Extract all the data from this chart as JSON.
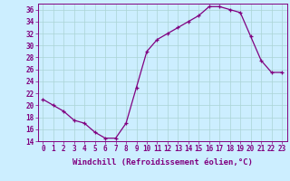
{
  "x": [
    0,
    1,
    2,
    3,
    4,
    5,
    6,
    7,
    8,
    9,
    10,
    11,
    12,
    13,
    14,
    15,
    16,
    17,
    18,
    19,
    20,
    21,
    22,
    23
  ],
  "y": [
    21,
    20,
    19,
    17.5,
    17,
    15.5,
    14.5,
    14.5,
    17,
    23,
    29,
    31,
    32,
    33,
    34,
    35,
    36.5,
    36.5,
    36,
    35.5,
    31.5,
    27.5,
    25.5,
    25.5
  ],
  "line_color": "#800080",
  "marker": "+",
  "marker_color": "#800080",
  "bg_color": "#cceeff",
  "grid_color": "#aad4d4",
  "xlabel": "Windchill (Refroidissement éolien,°C)",
  "xlim_left": -0.5,
  "xlim_right": 23.5,
  "ylim": [
    14,
    37
  ],
  "yticks": [
    14,
    16,
    18,
    20,
    22,
    24,
    26,
    28,
    30,
    32,
    34,
    36
  ],
  "xtick_labels": [
    "0",
    "1",
    "2",
    "3",
    "4",
    "5",
    "6",
    "7",
    "8",
    "9",
    "10",
    "11",
    "12",
    "13",
    "14",
    "15",
    "16",
    "17",
    "18",
    "19",
    "20",
    "21",
    "22",
    "23"
  ],
  "line_color_hex": "#800080",
  "tick_color": "#800080",
  "label_color": "#800080",
  "font_size_label": 6.5,
  "font_size_tick": 5.5,
  "line_width": 0.9
}
